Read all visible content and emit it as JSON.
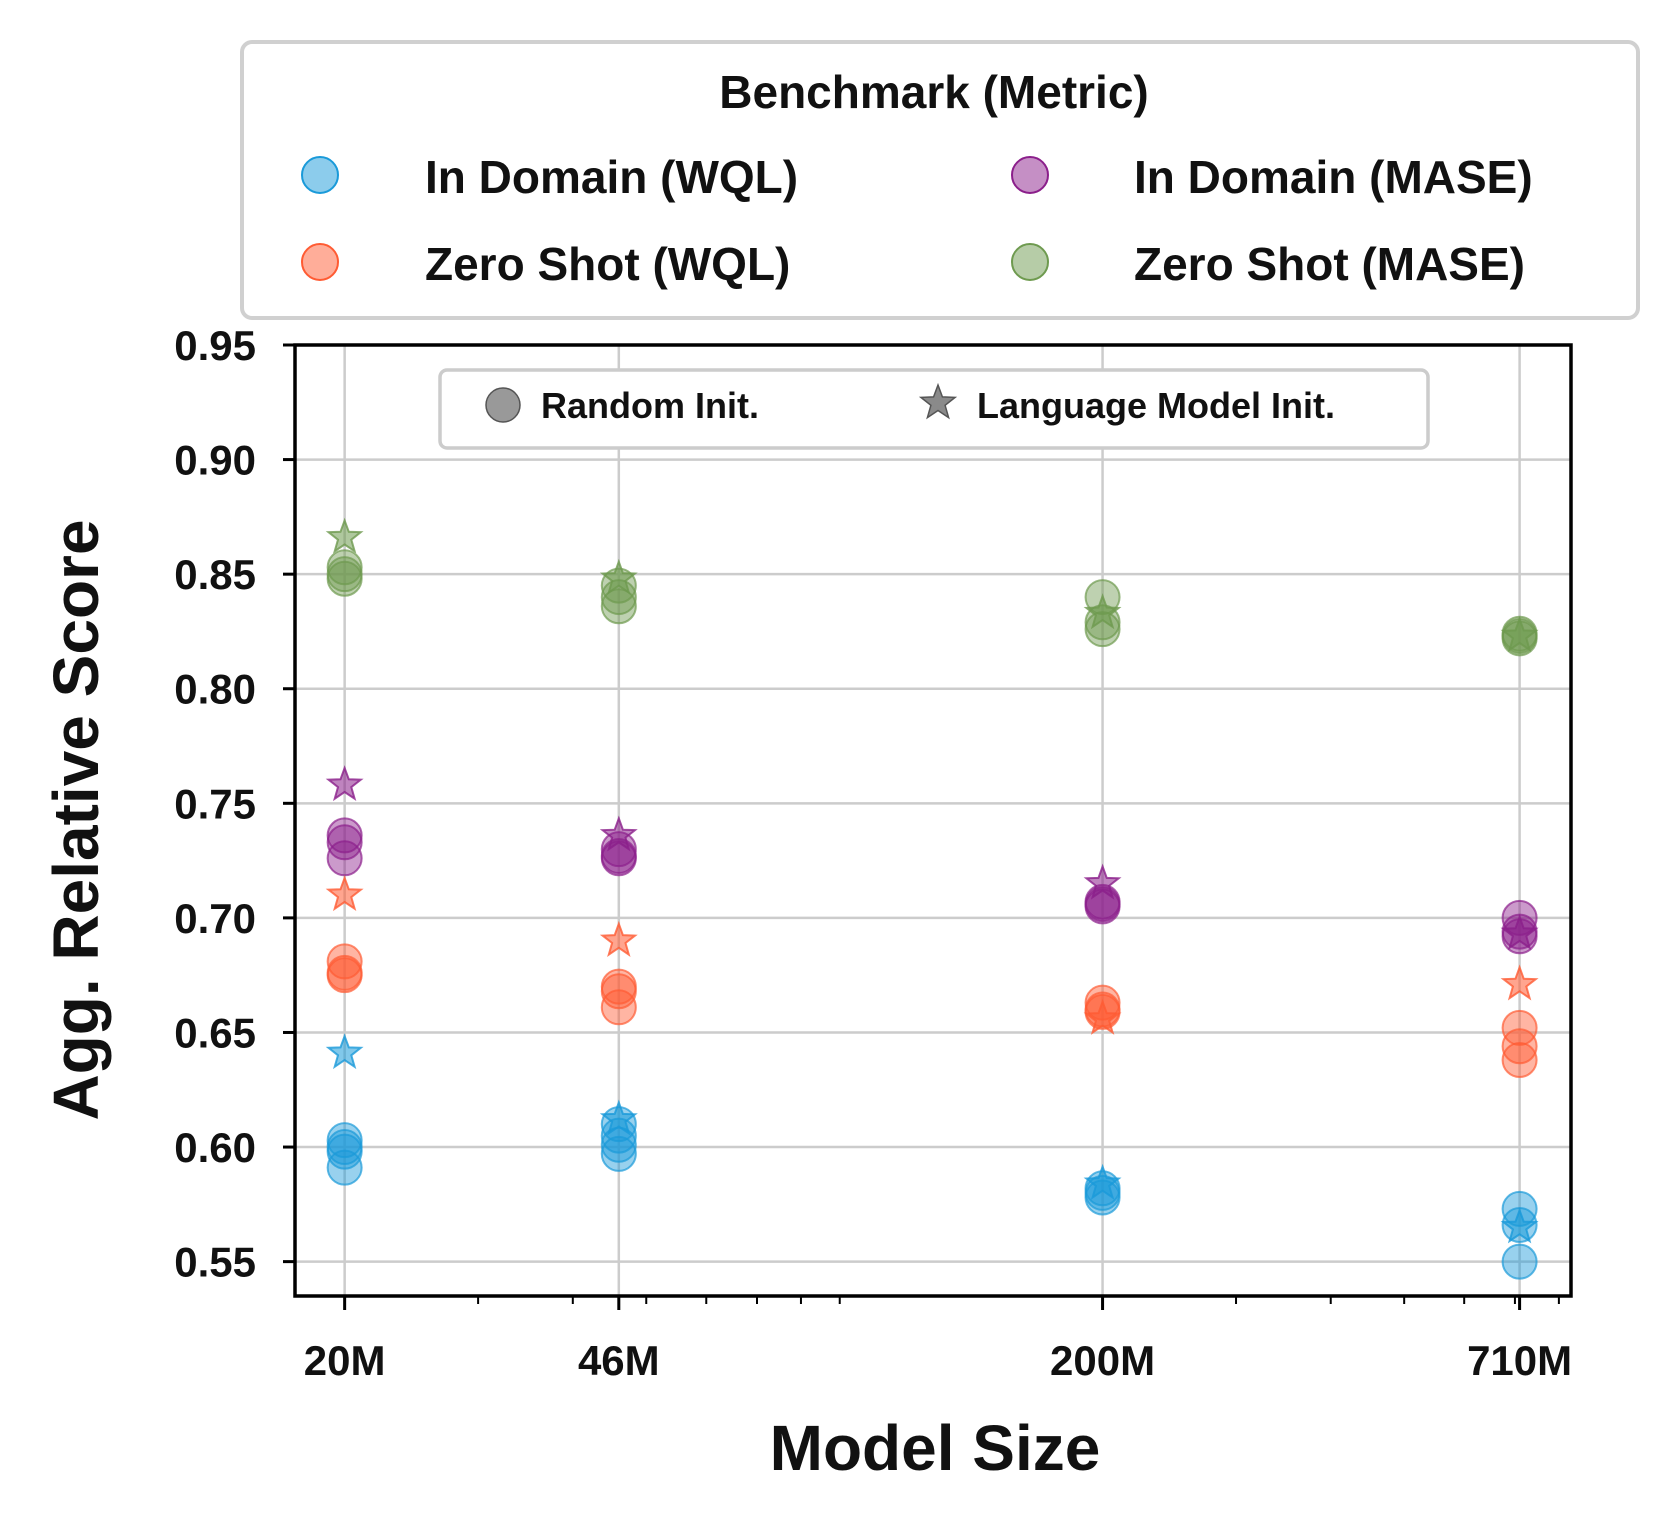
{
  "chart_data": {
    "type": "scatter",
    "title": "",
    "xlabel": "Model Size",
    "ylabel": "Agg. Relative Score",
    "x_scale": "log",
    "categories": [
      "20M",
      "46M",
      "200M",
      "710M"
    ],
    "x_values_millions": [
      20,
      46,
      200,
      710
    ],
    "ylim": [
      0.535,
      0.95
    ],
    "yticks": [
      "0.55",
      "0.60",
      "0.65",
      "0.70",
      "0.75",
      "0.80",
      "0.85",
      "0.90",
      "0.95"
    ],
    "grid": true,
    "legend": {
      "title": "Benchmark (Metric)",
      "placement": "above plot",
      "entries": [
        "In Domain (WQL)",
        "In Domain (MASE)",
        "Zero Shot (WQL)",
        "Zero Shot (MASE)"
      ]
    },
    "marker_legend": {
      "placement": "top-center inside plot",
      "entries": [
        {
          "label": "Random Init.",
          "marker": "circle"
        },
        {
          "label": "Language Model Init.",
          "marker": "star"
        }
      ]
    },
    "series": [
      {
        "name": "In Domain (WQL)",
        "color": "#1a9ad9",
        "random_init": [
          [
            20,
            0.591
          ],
          [
            20,
            0.598
          ],
          [
            20,
            0.6
          ],
          [
            20,
            0.603
          ],
          [
            46,
            0.597
          ],
          [
            46,
            0.601
          ],
          [
            46,
            0.605
          ],
          [
            46,
            0.61
          ],
          [
            200,
            0.578
          ],
          [
            200,
            0.58
          ],
          [
            200,
            0.582
          ],
          [
            710,
            0.55
          ],
          [
            710,
            0.566
          ],
          [
            710,
            0.573
          ]
        ],
        "lm_init": [
          [
            20,
            0.641
          ],
          [
            46,
            0.612
          ],
          [
            200,
            0.584
          ],
          [
            710,
            0.565
          ]
        ]
      },
      {
        "name": "In Domain (MASE)",
        "color": "#8b1f8b",
        "random_init": [
          [
            20,
            0.726
          ],
          [
            20,
            0.733
          ],
          [
            20,
            0.736
          ],
          [
            46,
            0.726
          ],
          [
            46,
            0.727
          ],
          [
            46,
            0.73
          ],
          [
            200,
            0.705
          ],
          [
            200,
            0.706
          ],
          [
            200,
            0.707
          ],
          [
            710,
            0.692
          ],
          [
            710,
            0.694
          ],
          [
            710,
            0.7
          ]
        ],
        "lm_init": [
          [
            20,
            0.758
          ],
          [
            46,
            0.736
          ],
          [
            200,
            0.715
          ],
          [
            710,
            0.693
          ]
        ]
      },
      {
        "name": "Zero Shot (WQL)",
        "color": "#ff5b33",
        "random_init": [
          [
            20,
            0.675
          ],
          [
            20,
            0.676
          ],
          [
            20,
            0.681
          ],
          [
            46,
            0.661
          ],
          [
            46,
            0.668
          ],
          [
            46,
            0.67
          ],
          [
            200,
            0.659
          ],
          [
            200,
            0.66
          ],
          [
            200,
            0.663
          ],
          [
            710,
            0.638
          ],
          [
            710,
            0.644
          ],
          [
            710,
            0.652
          ]
        ],
        "lm_init": [
          [
            20,
            0.71
          ],
          [
            46,
            0.69
          ],
          [
            200,
            0.656
          ],
          [
            710,
            0.671
          ]
        ]
      },
      {
        "name": "Zero Shot (MASE)",
        "color": "#6e9a4f",
        "random_init": [
          [
            20,
            0.848
          ],
          [
            20,
            0.85
          ],
          [
            20,
            0.853
          ],
          [
            46,
            0.836
          ],
          [
            46,
            0.84
          ],
          [
            46,
            0.845
          ],
          [
            200,
            0.826
          ],
          [
            200,
            0.829
          ],
          [
            200,
            0.84
          ],
          [
            710,
            0.822
          ],
          [
            710,
            0.823
          ],
          [
            710,
            0.824
          ]
        ],
        "lm_init": [
          [
            20,
            0.866
          ],
          [
            46,
            0.848
          ],
          [
            200,
            0.833
          ],
          [
            710,
            0.823
          ]
        ]
      }
    ]
  }
}
